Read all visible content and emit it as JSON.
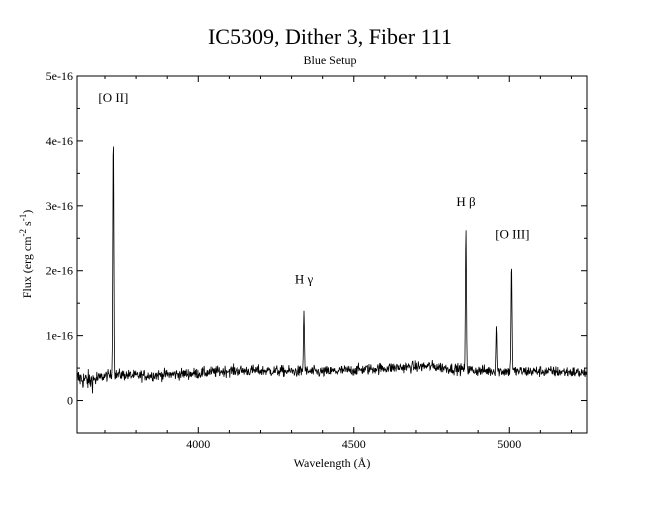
{
  "chart_data": {
    "type": "line",
    "title": "IC5309, Dither 3, Fiber 111",
    "subtitle": "Blue Setup",
    "xlabel": "Wavelength (Å)",
    "ylabel": {
      "prefix": "Flux (erg cm",
      "sup1": "-2",
      "mid": " s",
      "sup2": "-1",
      "suffix": ")"
    },
    "xlim": [
      3610,
      5250
    ],
    "ylim": [
      -5e-17,
      5e-16
    ],
    "x_ticks": [
      {
        "value": 4000,
        "label": "4000"
      },
      {
        "value": 4500,
        "label": "4500"
      },
      {
        "value": 5000,
        "label": "5000"
      }
    ],
    "y_ticks": [
      {
        "value": 0,
        "label": "0"
      },
      {
        "value": 1e-16,
        "label": "1e-16"
      },
      {
        "value": 2e-16,
        "label": "2e-16"
      },
      {
        "value": 3e-16,
        "label": "3e-16"
      },
      {
        "value": 4e-16,
        "label": "4e-16"
      },
      {
        "value": 5e-16,
        "label": "5e-16"
      }
    ],
    "continuum": [
      [
        3610,
        3.5e-17
      ],
      [
        3650,
        3e-17
      ],
      [
        3700,
        3.8e-17
      ],
      [
        3750,
        4e-17
      ],
      [
        3800,
        3.8e-17
      ],
      [
        3900,
        4e-17
      ],
      [
        4000,
        4.2e-17
      ],
      [
        4100,
        4.6e-17
      ],
      [
        4200,
        4.6e-17
      ],
      [
        4300,
        4.5e-17
      ],
      [
        4400,
        4.4e-17
      ],
      [
        4500,
        4.7e-17
      ],
      [
        4600,
        5e-17
      ],
      [
        4700,
        5.2e-17
      ],
      [
        4750,
        5.3e-17
      ],
      [
        4800,
        5e-17
      ],
      [
        4900,
        4.6e-17
      ],
      [
        5000,
        4.5e-17
      ],
      [
        5100,
        4.5e-17
      ],
      [
        5200,
        4.4e-17
      ],
      [
        5250,
        4.2e-17
      ]
    ],
    "noise_level": 6e-18,
    "emission_lines": [
      {
        "center": 3727,
        "peak": 4.15e-16,
        "width": 1.6,
        "label": "[O II]",
        "label_x": 3727,
        "label_y": 4.6e-16
      },
      {
        "center": 4340,
        "peak": 1.37e-16,
        "width": 1.6,
        "label": "H γ",
        "label_x": 4340,
        "label_y": 1.8e-16
      },
      {
        "center": 4861,
        "peak": 2.62e-16,
        "width": 1.6,
        "label": "H β",
        "label_x": 4861,
        "label_y": 3e-16
      },
      {
        "center": 4959,
        "peak": 1.2e-16,
        "width": 1.4,
        "label": "",
        "label_x": 4959,
        "label_y": 1.5e-16
      },
      {
        "center": 5007,
        "peak": 2.15e-16,
        "width": 1.6,
        "label": "[O III]",
        "label_x": 5010,
        "label_y": 2.5e-16
      }
    ],
    "grid": false,
    "legend": "none",
    "line_color": "#000000"
  }
}
